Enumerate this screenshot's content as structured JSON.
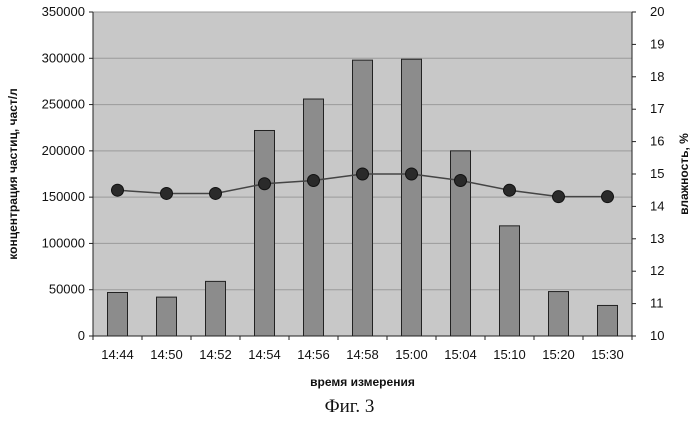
{
  "chart_data": {
    "type": "bar",
    "categories": [
      "14:44",
      "14:50",
      "14:52",
      "14:54",
      "14:56",
      "14:58",
      "15:00",
      "15:04",
      "15:10",
      "15:20",
      "15:30"
    ],
    "series": [
      {
        "type": "bar",
        "axis": "left",
        "values": [
          47000,
          42000,
          59000,
          222000,
          256000,
          298000,
          299000,
          200000,
          119000,
          48000,
          33000
        ]
      },
      {
        "type": "line",
        "axis": "right",
        "values": [
          14.5,
          14.4,
          14.4,
          14.7,
          14.8,
          15.0,
          15.0,
          14.8,
          14.5,
          14.3,
          14.3
        ]
      }
    ],
    "xlabel": "время измерения",
    "ylabel": "концентрация частиц, част/л",
    "y2label": "влажность, %",
    "ylim": [
      0,
      350000
    ],
    "y2lim": [
      10,
      20
    ],
    "yticks": [
      "0",
      "50000",
      "100000",
      "150000",
      "200000",
      "250000",
      "300000",
      "350000"
    ],
    "y2ticks": [
      "10",
      "11",
      "12",
      "13",
      "14",
      "15",
      "16",
      "17",
      "18",
      "19",
      "20"
    ],
    "grid": true,
    "legend": "none",
    "colors": {
      "plot_bg": "#c8c8c8",
      "bar": "#8c8c8c",
      "line": "#444444",
      "marker": "#2a2a2a",
      "grid": "#9a9a9a"
    }
  },
  "caption": "Фиг. 3"
}
